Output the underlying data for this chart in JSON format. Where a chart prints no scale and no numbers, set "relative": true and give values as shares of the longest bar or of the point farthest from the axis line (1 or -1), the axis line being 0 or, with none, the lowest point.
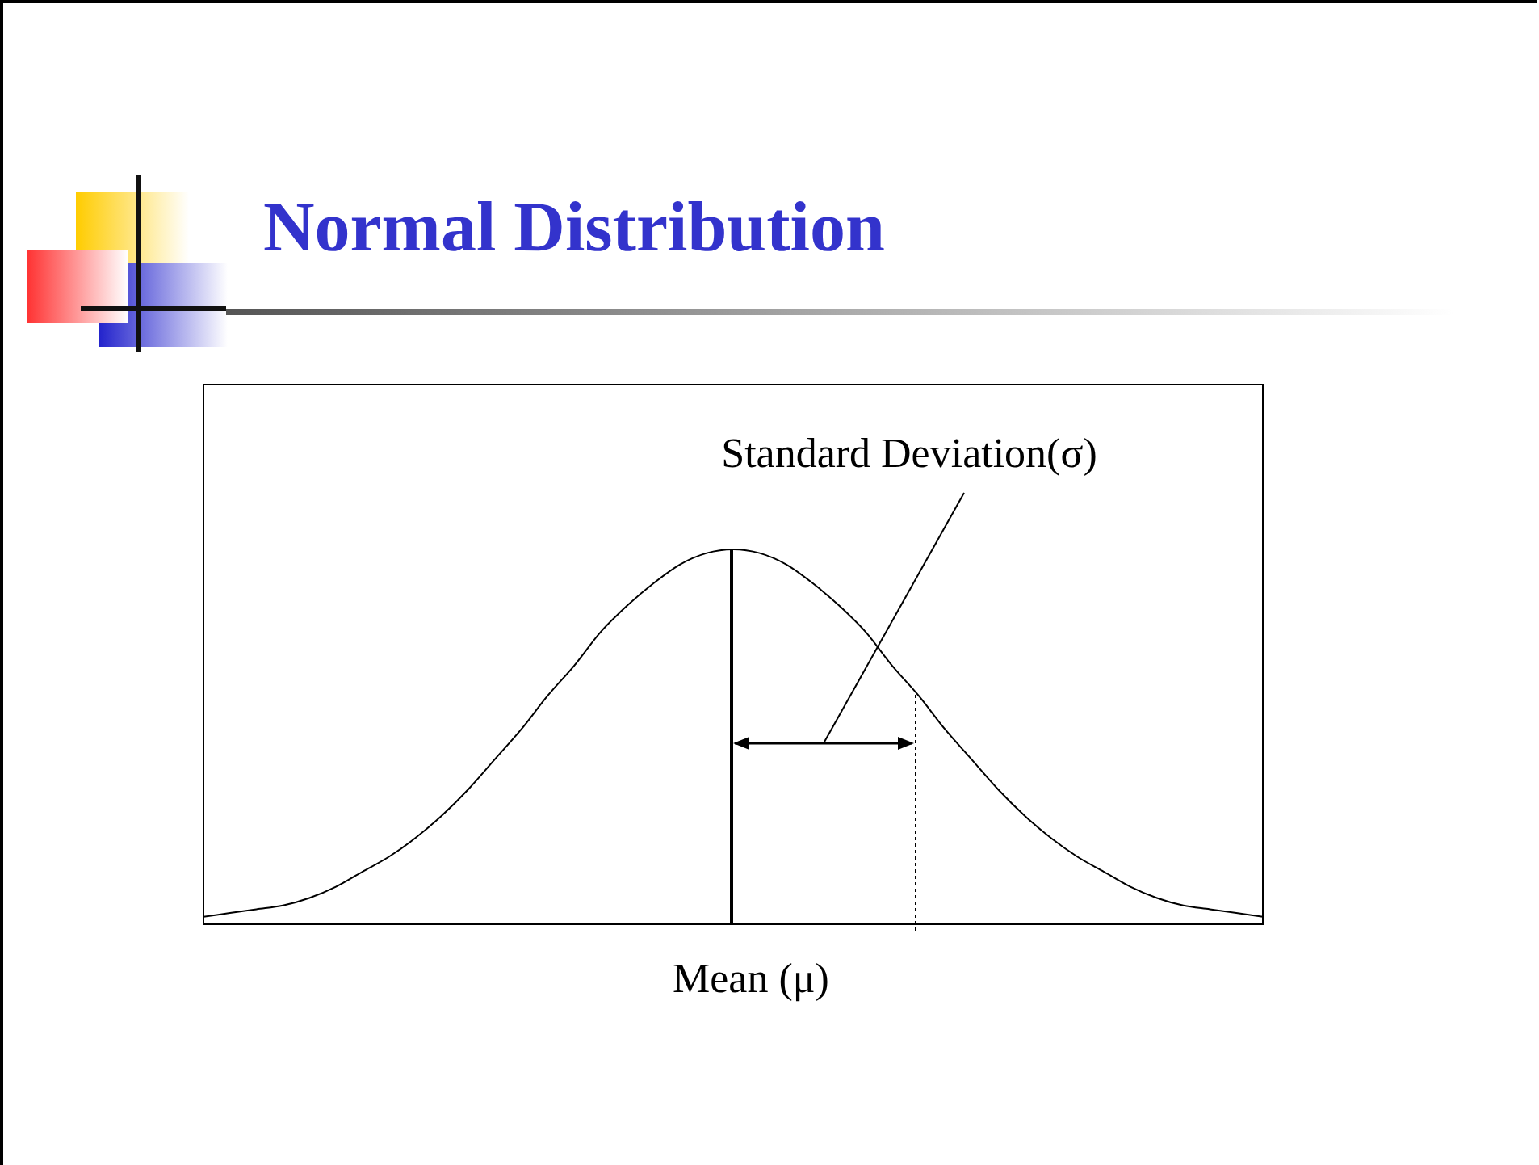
{
  "chart_data": {
    "type": "line",
    "title": "Normal Distribution",
    "relative": true,
    "marker": "none",
    "line_style": "solid",
    "annotations": [
      "Standard Deviation(σ)",
      "Mean (μ)"
    ],
    "categories": [
      null,
      null,
      null,
      null,
      null,
      null,
      null,
      null,
      null,
      null,
      null,
      null,
      null,
      null,
      null,
      null,
      null,
      null,
      null,
      null,
      null,
      null,
      null,
      null,
      null,
      null,
      null,
      null,
      null,
      null,
      null,
      null,
      null,
      null,
      null,
      null,
      null,
      null,
      null,
      null,
      null
    ],
    "series": [
      {
        "color": "#000000",
        "values": [
          0.02,
          0.03,
          0.04,
          0.05,
          0.07,
          0.1,
          0.14,
          0.18,
          0.23,
          0.29,
          0.36,
          0.44,
          0.52,
          0.61,
          0.69,
          0.78,
          0.85,
          0.91,
          0.96,
          0.99,
          1,
          0.99,
          0.96,
          0.91,
          0.85,
          0.78,
          0.69,
          0.61,
          0.52,
          0.44,
          0.36,
          0.29,
          0.23,
          0.18,
          0.14,
          0.1,
          0.07,
          0.05,
          0.04,
          0.03,
          0.02
        ]
      }
    ]
  }
}
